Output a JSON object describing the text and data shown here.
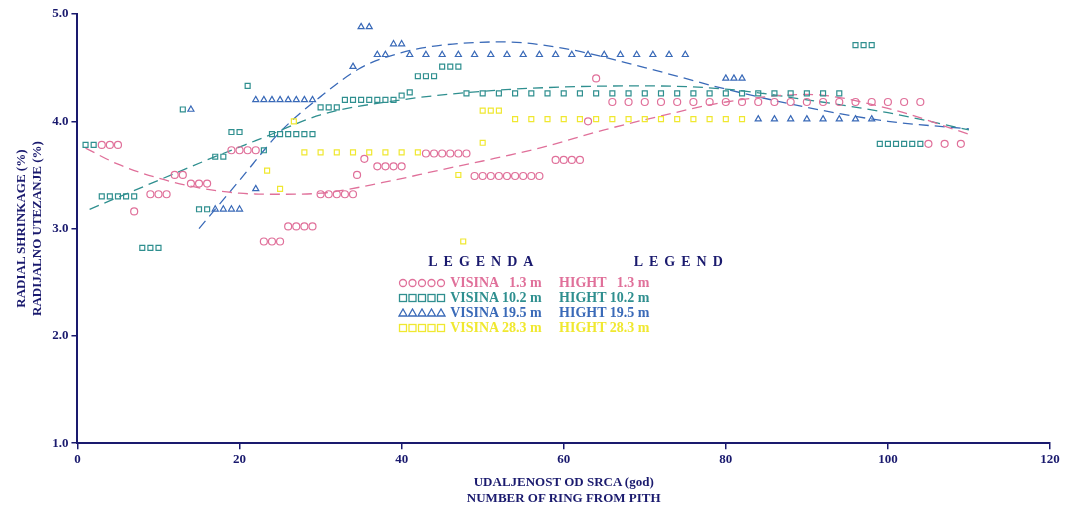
{
  "chart_data": {
    "type": "scatter",
    "xlabel": "UDALJENOST OD SRCA (god)\nNUMBER OF RING FROM PITH",
    "ylabel": "RADIAL SHRINKAGE (%)\nRADIJALNO UTEZANJE (%)",
    "legend_title": "LEGENDA          LEGEND",
    "legend": "bottom",
    "xlim": [
      0,
      120
    ],
    "xticks": [
      0,
      20,
      40,
      60,
      80,
      100,
      120
    ],
    "ylim": [
      1,
      5
    ],
    "yticks": [
      {
        "value": 1,
        "label": "1.0"
      },
      {
        "value": 2,
        "label": "2.0"
      },
      {
        "value": 3,
        "label": "3.0"
      },
      {
        "value": 4,
        "label": "4.0"
      },
      {
        "value": 5,
        "label": "5.0"
      }
    ],
    "grid": false,
    "series": [
      {
        "name": "VISINA   1.3 m     HIGHT   1.3 m",
        "color": "#e0709a",
        "marker": "circle",
        "x": [
          3,
          4,
          5,
          7,
          9,
          10,
          11,
          12,
          13,
          14,
          15,
          16,
          19,
          20,
          21,
          22,
          23,
          24,
          25,
          26,
          27,
          28,
          29,
          30,
          31,
          32,
          33,
          34,
          34.5,
          35.4,
          37,
          38,
          39,
          40,
          43,
          44,
          45,
          46,
          47,
          48,
          49,
          50,
          51,
          52,
          53,
          54,
          55,
          56,
          57,
          59,
          60,
          61,
          62,
          63,
          64,
          66,
          68,
          70,
          72,
          74,
          76,
          78,
          80,
          82,
          84,
          86,
          88,
          90,
          92,
          94,
          96,
          98,
          100,
          102,
          104,
          105,
          107,
          109
        ],
        "values": [
          3.78,
          3.78,
          3.78,
          3.16,
          3.32,
          3.32,
          3.32,
          3.5,
          3.5,
          3.42,
          3.42,
          3.42,
          3.73,
          3.73,
          3.73,
          3.73,
          2.88,
          2.88,
          2.88,
          3.02,
          3.02,
          3.02,
          3.02,
          3.32,
          3.32,
          3.32,
          3.32,
          3.32,
          3.5,
          3.65,
          3.58,
          3.58,
          3.58,
          3.58,
          3.7,
          3.7,
          3.7,
          3.7,
          3.7,
          3.7,
          3.49,
          3.49,
          3.49,
          3.49,
          3.49,
          3.49,
          3.49,
          3.49,
          3.49,
          3.64,
          3.64,
          3.64,
          3.64,
          4.0,
          4.4,
          4.18,
          4.18,
          4.18,
          4.18,
          4.18,
          4.18,
          4.18,
          4.18,
          4.18,
          4.18,
          4.18,
          4.18,
          4.18,
          4.18,
          4.18,
          4.18,
          4.18,
          4.18,
          4.18,
          4.18,
          3.79,
          3.79,
          3.79
        ]
      },
      {
        "name": "VISINA 10.2 m     HIGHT 10.2 m",
        "color": "#2f8f8f",
        "marker": "square",
        "x": [
          1,
          2,
          3,
          4,
          5,
          6,
          7,
          8,
          9,
          10,
          13,
          15,
          16,
          17,
          18,
          19,
          20,
          21,
          23,
          24,
          25,
          26,
          27,
          28,
          29,
          30,
          31,
          32,
          33,
          34,
          35,
          36,
          37,
          38,
          39,
          40,
          41,
          42,
          43,
          44,
          45,
          46,
          47,
          48,
          50,
          52,
          54,
          56,
          58,
          60,
          62,
          64,
          66,
          68,
          70,
          72,
          74,
          76,
          78,
          80,
          82,
          84,
          86,
          88,
          90,
          92,
          94,
          96,
          97,
          98,
          99,
          100,
          101,
          102,
          103,
          104
        ],
        "values": [
          3.78,
          3.78,
          3.3,
          3.3,
          3.3,
          3.3,
          3.3,
          2.82,
          2.82,
          2.82,
          4.11,
          3.18,
          3.18,
          3.67,
          3.67,
          3.9,
          3.9,
          4.33,
          3.73,
          3.88,
          3.88,
          3.88,
          3.88,
          3.88,
          3.88,
          4.13,
          4.13,
          4.13,
          4.2,
          4.2,
          4.2,
          4.2,
          4.2,
          4.2,
          4.2,
          4.24,
          4.27,
          4.42,
          4.42,
          4.42,
          4.51,
          4.51,
          4.51,
          4.26,
          4.26,
          4.26,
          4.26,
          4.26,
          4.26,
          4.26,
          4.26,
          4.26,
          4.26,
          4.26,
          4.26,
          4.26,
          4.26,
          4.26,
          4.26,
          4.26,
          4.26,
          4.26,
          4.26,
          4.26,
          4.26,
          4.26,
          4.26,
          4.71,
          4.71,
          4.71,
          3.79,
          3.79,
          3.79,
          3.79,
          3.79,
          3.79
        ]
      },
      {
        "name": "VISINA 19.5 m     HIGHT 19.5 m",
        "color": "#3a6ab8",
        "marker": "triangle",
        "x": [
          14,
          17,
          18,
          19,
          20,
          22,
          22,
          23,
          24,
          25,
          26,
          27,
          28,
          29,
          34,
          35,
          36,
          37,
          38,
          39,
          40,
          41,
          43,
          45,
          47,
          49,
          51,
          53,
          55,
          57,
          59,
          61,
          63,
          65,
          67,
          69,
          71,
          73,
          75,
          80,
          81,
          82,
          84,
          86,
          88,
          90,
          92,
          94,
          96,
          98
        ],
        "values": [
          4.11,
          3.18,
          3.18,
          3.18,
          3.18,
          3.37,
          4.2,
          4.2,
          4.2,
          4.2,
          4.2,
          4.2,
          4.2,
          4.2,
          4.51,
          4.88,
          4.88,
          4.62,
          4.62,
          4.72,
          4.72,
          4.62,
          4.62,
          4.62,
          4.62,
          4.62,
          4.62,
          4.62,
          4.62,
          4.62,
          4.62,
          4.62,
          4.62,
          4.62,
          4.62,
          4.62,
          4.62,
          4.62,
          4.62,
          4.4,
          4.4,
          4.4,
          4.02,
          4.02,
          4.02,
          4.02,
          4.02,
          4.02,
          4.02,
          4.02
        ]
      },
      {
        "name": "VISINA 28.3 m     HIGHT 28.3 m",
        "color": "#f0e830",
        "marker": "square",
        "x": [
          23.4,
          25,
          26.7,
          28,
          30,
          32,
          34,
          36,
          38,
          40,
          42,
          47,
          47.6,
          50,
          50,
          51,
          52,
          54,
          56,
          58,
          60,
          62,
          64,
          66,
          68,
          70,
          72,
          74,
          76,
          78,
          80,
          82
        ],
        "values": [
          3.54,
          3.37,
          4.0,
          3.71,
          3.71,
          3.71,
          3.71,
          3.71,
          3.71,
          3.71,
          3.71,
          3.5,
          2.88,
          3.8,
          4.1,
          4.1,
          4.1,
          4.02,
          4.02,
          4.02,
          4.02,
          4.02,
          4.02,
          4.02,
          4.02,
          4.02,
          4.02,
          4.02,
          4.02,
          4.02,
          4.02,
          4.02
        ]
      },
      {
        "type": "line",
        "color": "#e0709a",
        "line_style": "dashed",
        "x": [
          1,
          5,
          10,
          15,
          20,
          25,
          30,
          37.7,
          45,
          50,
          57,
          65,
          72,
          80,
          90,
          100,
          110
        ],
        "values": [
          3.75,
          3.6,
          3.47,
          3.38,
          3.33,
          3.32,
          3.33,
          3.43,
          3.55,
          3.63,
          3.75,
          3.92,
          4.05,
          4.18,
          4.25,
          4.12,
          3.88
        ]
      },
      {
        "type": "line",
        "color": "#2f8f8f",
        "line_style": "dashed",
        "x": [
          1.5,
          10,
          16,
          23,
          30,
          40,
          50,
          60,
          70,
          80,
          90,
          100,
          110
        ],
        "values": [
          3.18,
          3.45,
          3.64,
          3.85,
          4.06,
          4.2,
          4.28,
          4.32,
          4.33,
          4.3,
          4.2,
          4.08,
          3.92
        ]
      },
      {
        "type": "line",
        "color": "#3a6ab8",
        "line_style": "dashed",
        "x": [
          15,
          20,
          25,
          30,
          35,
          40,
          45,
          52.5,
          60,
          70,
          80,
          90,
          100,
          110
        ],
        "values": [
          3.0,
          3.45,
          3.9,
          4.23,
          4.5,
          4.64,
          4.71,
          4.74,
          4.68,
          4.5,
          4.3,
          4.13,
          4.0,
          3.93
        ]
      }
    ]
  }
}
